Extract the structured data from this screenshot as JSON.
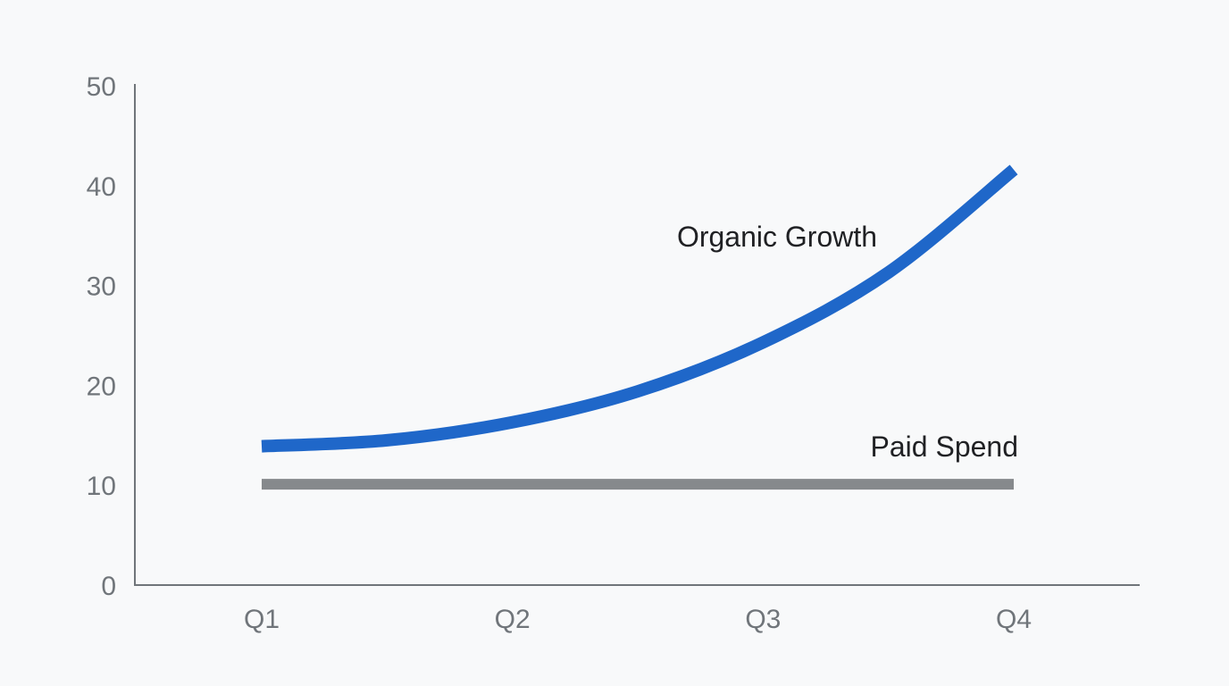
{
  "chart_data": {
    "type": "line",
    "categories": [
      "Q1",
      "Q2",
      "Q3",
      "Q4"
    ],
    "ylim": [
      0,
      50
    ],
    "yticks": [
      0,
      10,
      20,
      30,
      40,
      50
    ],
    "xlabel": "",
    "ylabel": "",
    "title": "",
    "grid": false,
    "legend": "none",
    "series": [
      {
        "name": "Organic Growth",
        "color": "#1f67c9",
        "x": [
          1.0,
          1.5,
          2.0,
          2.5,
          3.0,
          3.5,
          4.0
        ],
        "values": [
          13.9,
          14.5,
          16.3,
          19.4,
          24.3,
          31.3,
          41.6
        ]
      },
      {
        "name": "Paid Spend",
        "color": "#86898c",
        "x": [
          1.0,
          4.0
        ],
        "values": [
          10.1,
          10.1
        ]
      }
    ]
  }
}
